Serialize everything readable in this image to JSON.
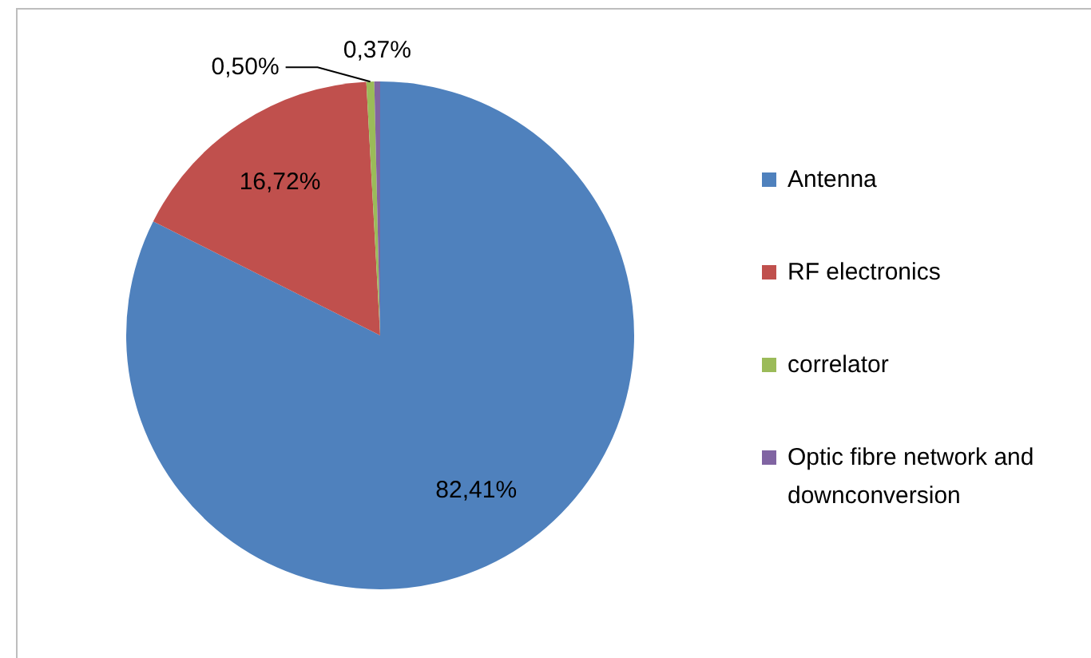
{
  "chart_data": {
    "type": "pie",
    "categories": [
      "Antenna",
      "RF electronics",
      "correlator",
      "Optic fibre network and downconversion"
    ],
    "values": [
      82.41,
      16.72,
      0.5,
      0.37
    ],
    "colors": [
      "#4f81bd",
      "#c0504d",
      "#9bbb59",
      "#8064a2"
    ],
    "value_labels": [
      "82,41%",
      "16,72%",
      "0,50%",
      "0,37%"
    ],
    "legend": "right"
  }
}
